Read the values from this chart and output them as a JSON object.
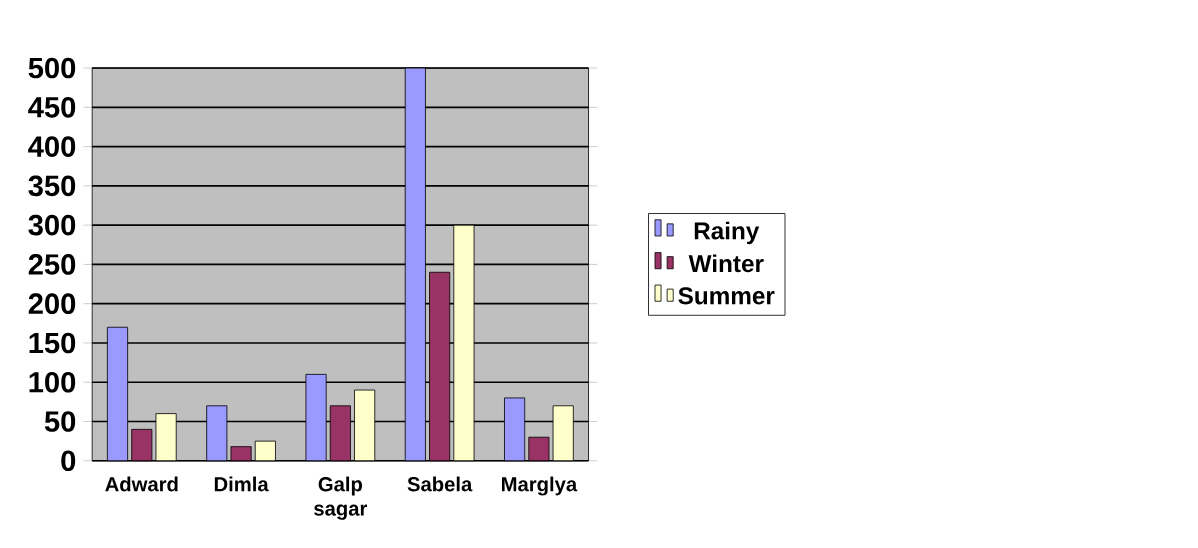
{
  "chart_data": {
    "type": "bar",
    "categories": [
      "Adward",
      "Dimla",
      "Galp sagar",
      "Sabela",
      "Marglya"
    ],
    "series": [
      {
        "name": "Rainy",
        "color": "#9999ff",
        "values": [
          170,
          70,
          110,
          500,
          80
        ]
      },
      {
        "name": "Winter",
        "color": "#993366",
        "values": [
          40,
          18,
          70,
          240,
          30
        ]
      },
      {
        "name": "Summer",
        "color": "#ffffcc",
        "values": [
          60,
          25,
          90,
          300,
          70
        ]
      }
    ],
    "ylim": [
      0,
      500
    ],
    "yticks": [
      0,
      50,
      100,
      150,
      200,
      250,
      300,
      350,
      400,
      450,
      500
    ],
    "grid": "y",
    "legend": "right"
  }
}
